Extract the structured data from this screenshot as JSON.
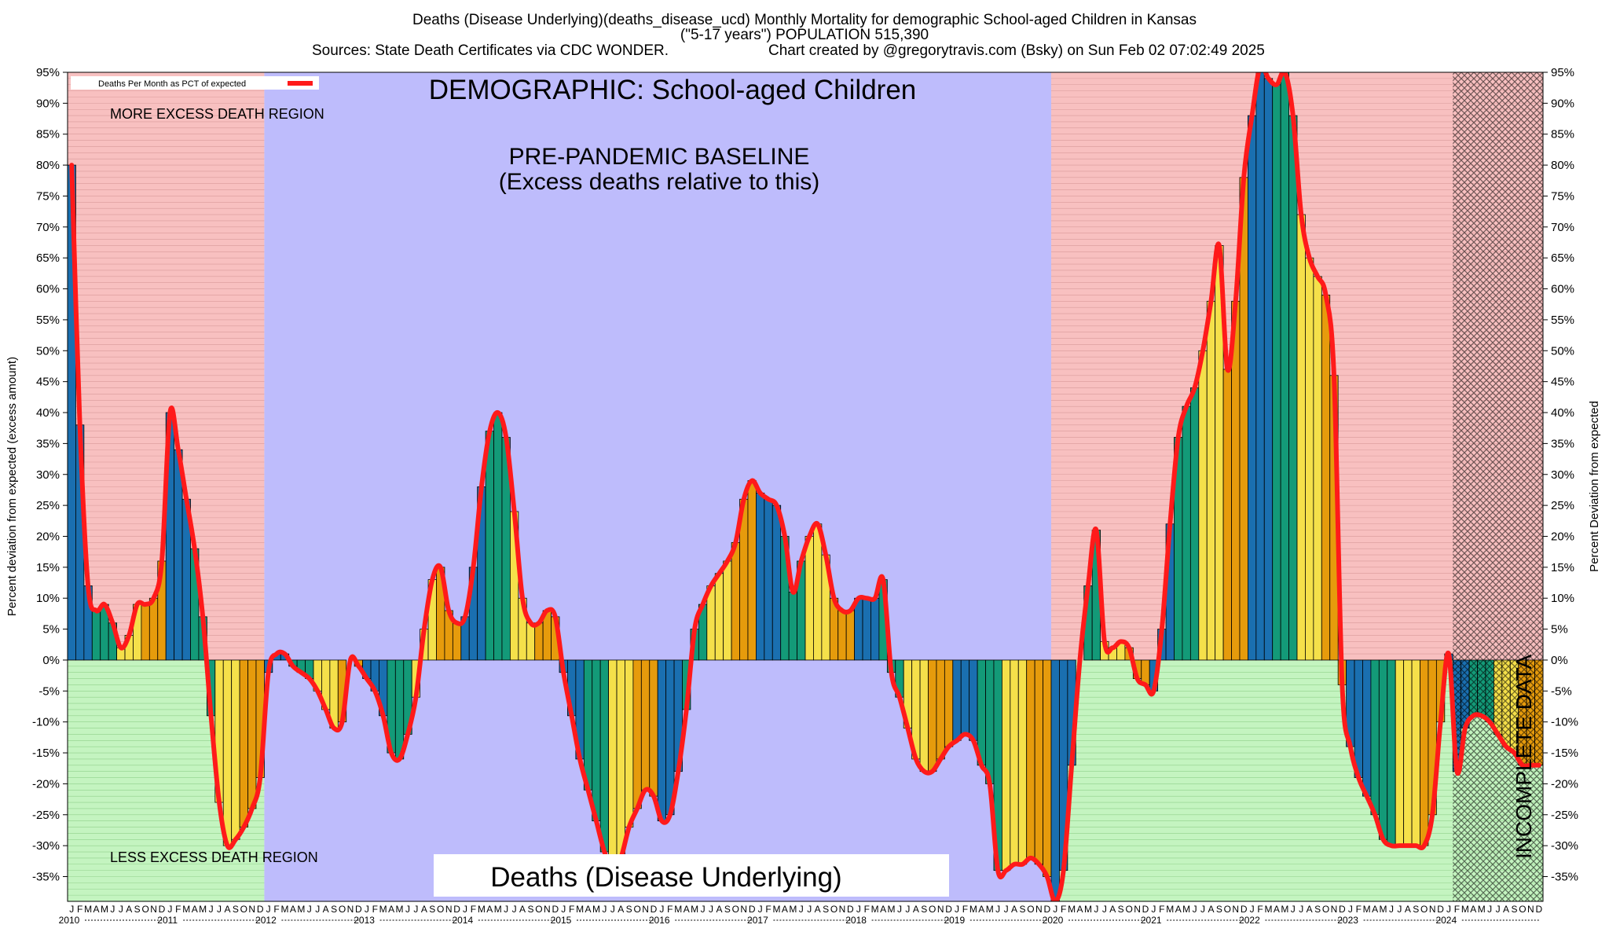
{
  "header": {
    "line1": "Deaths (Disease Underlying)(deaths_disease_ucd) Monthly Mortality for demographic School-aged Children in Kansas",
    "line2": "(\"5-17 years\") POPULATION 515,390",
    "line3a": "Sources: State Death Certificates via CDC WONDER.",
    "line3b": "Chart created by @gregorytravis.com (Bsky) on Sun Feb 02 07:02:49 2025"
  },
  "annotations": {
    "demographic": "DEMOGRAPHIC: School-aged Children",
    "baseline_line1": "PRE-PANDEMIC BASELINE",
    "baseline_line2": "(Excess deaths relative to this)",
    "more_excess": "MORE EXCESS DEATH REGION",
    "less_excess": "LESS EXCESS DEATH REGION",
    "incomplete": "INCOMPLETE DATA",
    "bottom_label": "Deaths (Disease Underlying)"
  },
  "colors": {
    "excess_region": "#f8c0c0",
    "less_region": "#c4f4c0",
    "baseline_region": "#bebcfc",
    "line": "#ff1a1a",
    "bar_q1": "#1a6fb0",
    "bar_q2": "#139a78",
    "bar_q3": "#f5e04a",
    "bar_q4": "#e69b0c"
  },
  "chart_data": {
    "type": "bar",
    "title": "Deaths (Disease Underlying)(deaths_disease_ucd) Monthly Mortality for demographic School-aged Children in Kansas",
    "ylabel_left": "Percent deviation from expected (excess amount)",
    "ylabel_right": "Percent Deviation from expected",
    "ylim": [
      -39,
      95
    ],
    "yticks": [
      -35,
      -30,
      -25,
      -20,
      -15,
      -10,
      -5,
      0,
      5,
      10,
      15,
      20,
      25,
      30,
      35,
      40,
      45,
      50,
      55,
      60,
      65,
      70,
      75,
      80,
      85,
      90,
      95
    ],
    "ytick_suffix": "%",
    "legend": {
      "label": "Deaths Per Month as PCT of expected",
      "position": "top-left"
    },
    "month_letters": [
      "J",
      "F",
      "M",
      "A",
      "M",
      "J",
      "J",
      "A",
      "S",
      "O",
      "N",
      "D"
    ],
    "years": [
      "2010",
      "2011",
      "2012",
      "2013",
      "2014",
      "2015",
      "2016",
      "2017",
      "2018",
      "2019",
      "2020",
      "2021",
      "2022",
      "2023",
      "2024"
    ],
    "baseline_period": {
      "start": "2012-01",
      "end": "2019-12"
    },
    "incomplete_from": "2024-02",
    "series": [
      {
        "name": "Deaths Per Month as PCT of expected",
        "start": "2010-01",
        "values": [
          80,
          38,
          12,
          8,
          9,
          6,
          2,
          4,
          9,
          9,
          10,
          16,
          40,
          34,
          26,
          18,
          7,
          -9,
          -23,
          -30,
          -29,
          -27,
          -24,
          -19,
          -2,
          1,
          1,
          -1,
          -2,
          -3,
          -5,
          -8,
          -11,
          -10,
          0,
          -1,
          -3,
          -5,
          -9,
          -15,
          -16,
          -12,
          -6,
          5,
          13,
          15,
          8,
          6,
          7,
          15,
          28,
          37,
          40,
          36,
          24,
          10,
          6,
          6,
          8,
          7,
          -2,
          -9,
          -16,
          -21,
          -26,
          -31,
          -34,
          -32,
          -27,
          -24,
          -21,
          -22,
          -26,
          -25,
          -18,
          -8,
          5,
          9,
          12,
          14,
          16,
          19,
          26,
          29,
          27,
          26,
          25,
          20,
          11,
          16,
          20,
          22,
          17,
          10,
          8,
          8,
          10,
          10,
          10,
          13,
          -2,
          -6,
          -11,
          -16,
          -18,
          -18,
          -16,
          -14,
          -13,
          -12,
          -13,
          -17,
          -20,
          -34,
          -34,
          -33,
          -33,
          -32,
          -33,
          -35,
          -39,
          -34,
          -17,
          0,
          12,
          21,
          3,
          2,
          3,
          2,
          -3,
          -4,
          -5,
          5,
          22,
          36,
          41,
          44,
          50,
          58,
          67,
          47,
          58,
          78,
          88,
          96,
          94,
          93,
          95,
          88,
          72,
          65,
          62,
          59,
          46,
          -4,
          -14,
          -19,
          -22,
          -25,
          -29,
          -30,
          -30,
          -30,
          -30,
          -30,
          -25,
          -10,
          1,
          -18,
          -11,
          -9,
          -9,
          -10,
          -12,
          -14,
          -15,
          -17,
          -17,
          -17
        ]
      }
    ]
  }
}
